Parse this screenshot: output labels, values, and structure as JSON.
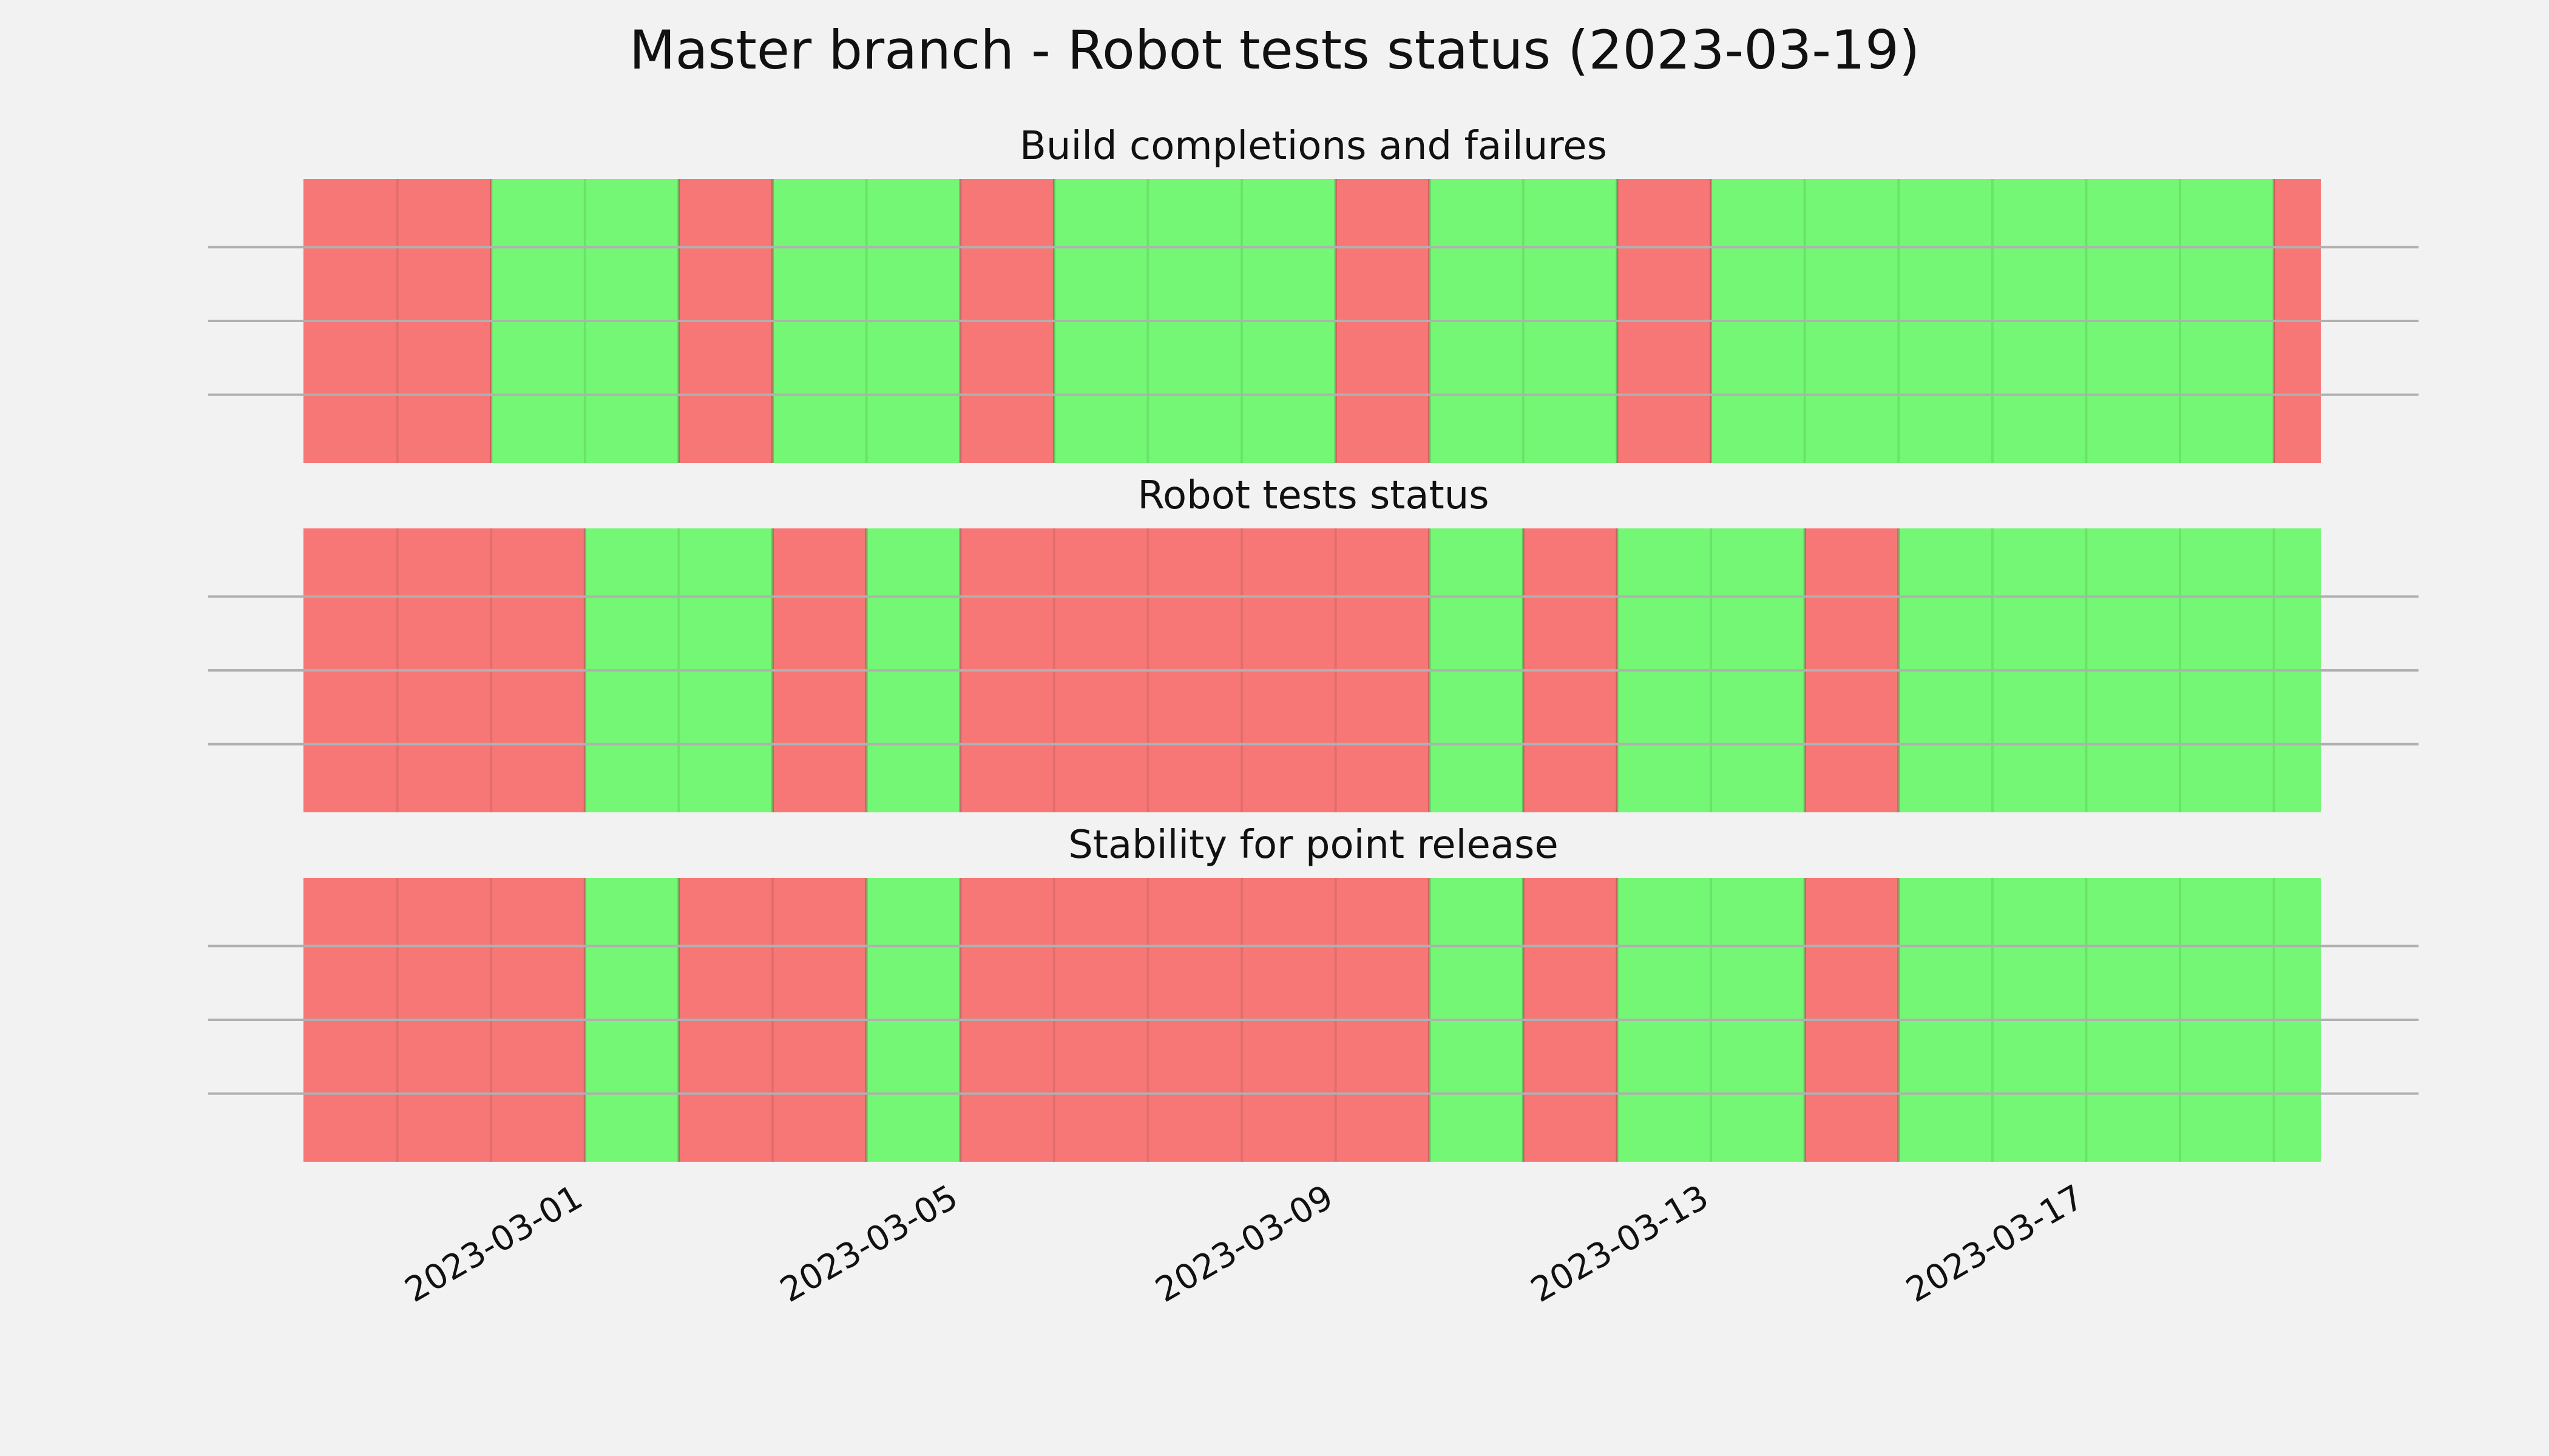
{
  "chart_data": {
    "type": "status-timeline",
    "title": "Master branch - Robot tests status (2023-03-19)",
    "x_axis": {
      "type": "date",
      "range": [
        "2023-02-26",
        "2023-03-19T12:00"
      ],
      "ticks": [
        "2023-03-01",
        "2023-03-05",
        "2023-03-09",
        "2023-03-13",
        "2023-03-17"
      ]
    },
    "grid": true,
    "colors": {
      "pass": "#74f774",
      "fail": "#f77777",
      "background": "#f2f2f2"
    },
    "panels": [
      {
        "title": "Build completions and failures",
        "spans": [
          {
            "start": "2023-02-26T00:00",
            "end": "2023-02-28T00:00",
            "status": "fail"
          },
          {
            "start": "2023-02-28T00:00",
            "end": "2023-03-02T00:00",
            "status": "pass"
          },
          {
            "start": "2023-03-02T00:00",
            "end": "2023-03-03T00:00",
            "status": "fail"
          },
          {
            "start": "2023-03-03T00:00",
            "end": "2023-03-05T00:00",
            "status": "pass"
          },
          {
            "start": "2023-03-05T00:00",
            "end": "2023-03-06T00:00",
            "status": "fail"
          },
          {
            "start": "2023-03-06T00:00",
            "end": "2023-03-09T00:00",
            "status": "pass"
          },
          {
            "start": "2023-03-09T00:00",
            "end": "2023-03-10T00:00",
            "status": "fail"
          },
          {
            "start": "2023-03-10T00:00",
            "end": "2023-03-12T00:00",
            "status": "pass"
          },
          {
            "start": "2023-03-12T00:00",
            "end": "2023-03-13T00:00",
            "status": "fail"
          },
          {
            "start": "2023-03-13T00:00",
            "end": "2023-03-19T00:00",
            "status": "pass"
          },
          {
            "start": "2023-03-19T00:00",
            "end": "2023-03-19T12:00",
            "status": "fail"
          }
        ]
      },
      {
        "title": "Robot tests status",
        "spans": [
          {
            "start": "2023-02-26T00:00",
            "end": "2023-03-01T00:00",
            "status": "fail"
          },
          {
            "start": "2023-03-01T00:00",
            "end": "2023-03-03T00:00",
            "status": "pass"
          },
          {
            "start": "2023-03-03T00:00",
            "end": "2023-03-04T00:00",
            "status": "fail"
          },
          {
            "start": "2023-03-04T00:00",
            "end": "2023-03-05T00:00",
            "status": "pass"
          },
          {
            "start": "2023-03-05T00:00",
            "end": "2023-03-10T00:00",
            "status": "fail"
          },
          {
            "start": "2023-03-10T00:00",
            "end": "2023-03-11T00:00",
            "status": "pass"
          },
          {
            "start": "2023-03-11T00:00",
            "end": "2023-03-12T00:00",
            "status": "fail"
          },
          {
            "start": "2023-03-12T00:00",
            "end": "2023-03-14T00:00",
            "status": "pass"
          },
          {
            "start": "2023-03-14T00:00",
            "end": "2023-03-15T00:00",
            "status": "fail"
          },
          {
            "start": "2023-03-15T00:00",
            "end": "2023-03-19T12:00",
            "status": "pass"
          }
        ]
      },
      {
        "title": "Stability for point release",
        "spans": [
          {
            "start": "2023-02-26T00:00",
            "end": "2023-03-01T00:00",
            "status": "fail"
          },
          {
            "start": "2023-03-01T00:00",
            "end": "2023-03-02T00:00",
            "status": "pass"
          },
          {
            "start": "2023-03-02T00:00",
            "end": "2023-03-04T00:00",
            "status": "fail"
          },
          {
            "start": "2023-03-04T00:00",
            "end": "2023-03-05T00:00",
            "status": "pass"
          },
          {
            "start": "2023-03-05T00:00",
            "end": "2023-03-10T00:00",
            "status": "fail"
          },
          {
            "start": "2023-03-10T00:00",
            "end": "2023-03-11T00:00",
            "status": "pass"
          },
          {
            "start": "2023-03-11T00:00",
            "end": "2023-03-12T00:00",
            "status": "fail"
          },
          {
            "start": "2023-03-12T00:00",
            "end": "2023-03-14T00:00",
            "status": "pass"
          },
          {
            "start": "2023-03-14T00:00",
            "end": "2023-03-15T00:00",
            "status": "fail"
          },
          {
            "start": "2023-03-15T00:00",
            "end": "2023-03-19T12:00",
            "status": "pass"
          }
        ]
      }
    ]
  }
}
